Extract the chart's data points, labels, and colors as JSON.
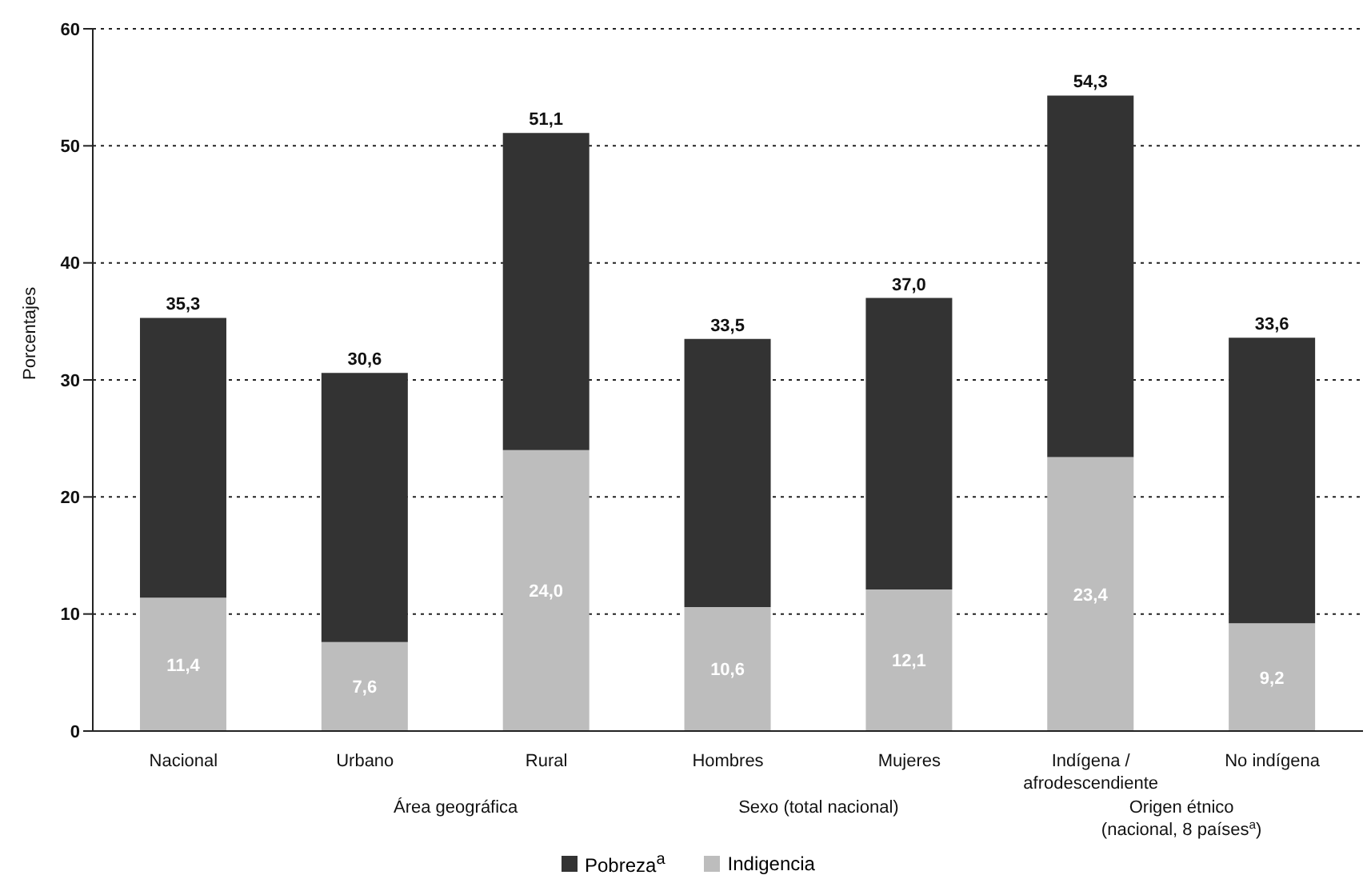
{
  "chart_data": {
    "type": "bar",
    "stacked": true,
    "ylabel": "Porcentajes",
    "categories": [
      "Nacional",
      "Urbano",
      "Rural",
      "Hombres",
      "Mujeres",
      "Indígena / afrodescendiente",
      "No indígena"
    ],
    "series": [
      {
        "name": "Indigencia",
        "color": "#bdbdbd",
        "values": [
          11.4,
          7.6,
          24.0,
          10.6,
          12.1,
          23.4,
          9.2
        ],
        "value_labels": [
          "11,4",
          "7,6",
          "24,0",
          "10,6",
          "12,1",
          "23,4",
          "9,2"
        ]
      },
      {
        "name": "Pobreza$^{a}$",
        "color": "#333333",
        "values": [
          23.9,
          23.0,
          27.1,
          22.9,
          24.9,
          30.9,
          24.4
        ]
      }
    ],
    "totals": [
      "35,3",
      "30,6",
      "51,1",
      "33,5",
      "37,0",
      "54,3",
      "33,6"
    ],
    "ylim": [
      0,
      60
    ],
    "yticks": [
      0,
      10,
      20,
      30,
      40,
      50,
      60
    ],
    "grid": "y",
    "legend": "bottom",
    "annotations": [
      "Área geográfica",
      "Sexo (total nacional)",
      "Origen étnico (nacional, 8 países$^{a}$)"
    ]
  }
}
